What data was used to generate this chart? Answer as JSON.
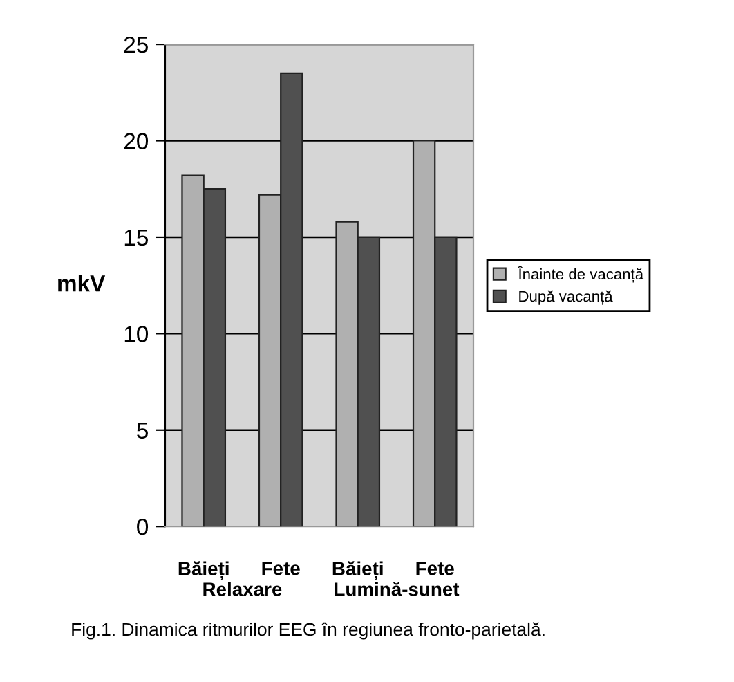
{
  "chart_data": {
    "type": "bar",
    "ylabel": "mkV",
    "categories": [
      "Băieți",
      "Fete",
      "Băieți",
      "Fete"
    ],
    "series": [
      {
        "name": "Înainte de vacanță",
        "color": "#b0b0b0",
        "values": [
          18.2,
          17.2,
          15.8,
          20
        ]
      },
      {
        "name": "După vacanță",
        "color": "#505050",
        "values": [
          17.5,
          23.5,
          15,
          15
        ]
      }
    ],
    "ylim": [
      0,
      25
    ],
    "yticks": [
      0,
      5,
      10,
      15,
      20,
      25
    ],
    "grid": "y",
    "legend": "right",
    "annotations": [
      "Relaxare",
      "Lumină-sunet",
      "Fig.1. Dinamica ritmurilor EEG în regiunea fronto-parietală."
    ]
  }
}
